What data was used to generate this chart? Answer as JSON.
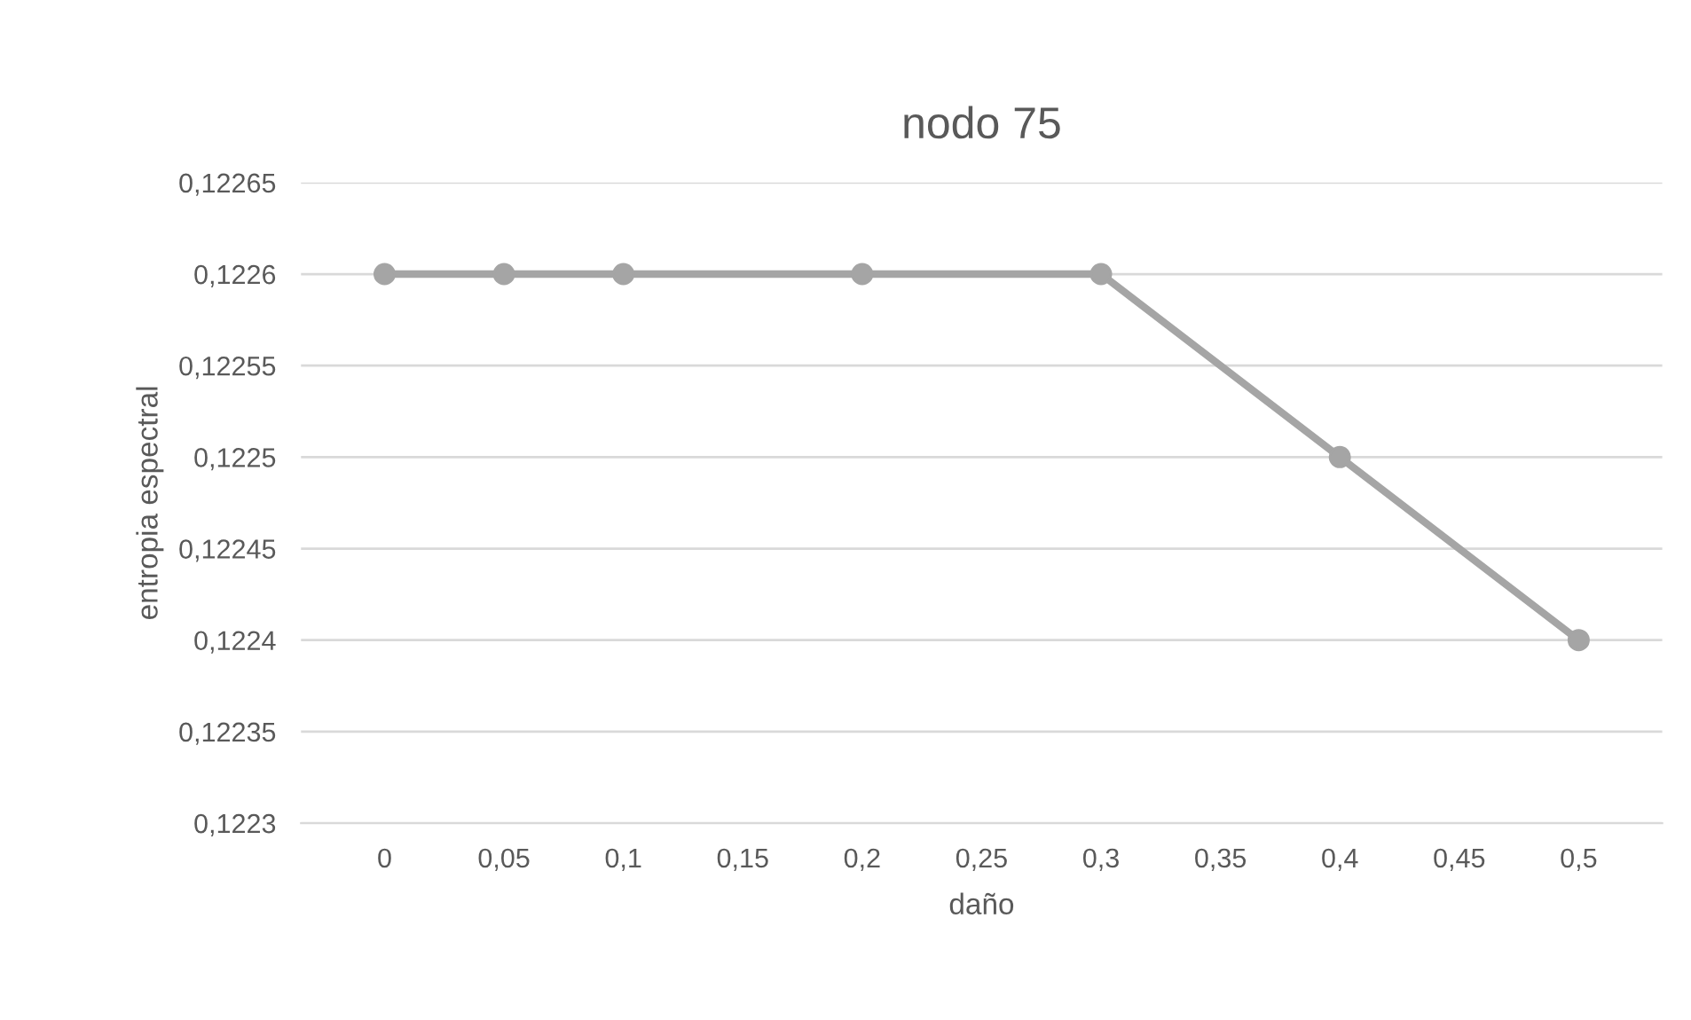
{
  "chart_data": {
    "type": "line",
    "title": "nodo 75",
    "xlabel": "daño",
    "ylabel": "entropia espectral",
    "x": [
      0,
      0.05,
      0.1,
      0.2,
      0.3,
      0.4,
      0.5
    ],
    "series": [
      {
        "color": "#a5a5a5",
        "values": [
          0.1226,
          0.1226,
          0.1226,
          0.1226,
          0.1226,
          0.1225,
          0.1224
        ]
      }
    ],
    "xlim": [
      -0.035,
      0.535
    ],
    "xticks": [
      {
        "value": 0,
        "label": "0"
      },
      {
        "value": 0.05,
        "label": "0,05"
      },
      {
        "value": 0.1,
        "label": "0,1"
      },
      {
        "value": 0.15,
        "label": "0,15"
      },
      {
        "value": 0.2,
        "label": "0,2"
      },
      {
        "value": 0.25,
        "label": "0,25"
      },
      {
        "value": 0.3,
        "label": "0,3"
      },
      {
        "value": 0.35,
        "label": "0,35"
      },
      {
        "value": 0.4,
        "label": "0,4"
      },
      {
        "value": 0.45,
        "label": "0,45"
      },
      {
        "value": 0.5,
        "label": "0,5"
      }
    ],
    "ylim": [
      0.1223,
      0.12265
    ],
    "yticks": [
      {
        "value": 0.1223,
        "label": "0,1223"
      },
      {
        "value": 0.12235,
        "label": "0,12235"
      },
      {
        "value": 0.1224,
        "label": "0,1224"
      },
      {
        "value": 0.12245,
        "label": "0,12245"
      },
      {
        "value": 0.1225,
        "label": "0,1225"
      },
      {
        "value": 0.12255,
        "label": "0,12255"
      },
      {
        "value": 0.1226,
        "label": "0,1226"
      },
      {
        "value": 0.12265,
        "label": "0,12265"
      }
    ],
    "grid": "y",
    "marker": "circle",
    "line_style": "solid",
    "legend": false
  }
}
